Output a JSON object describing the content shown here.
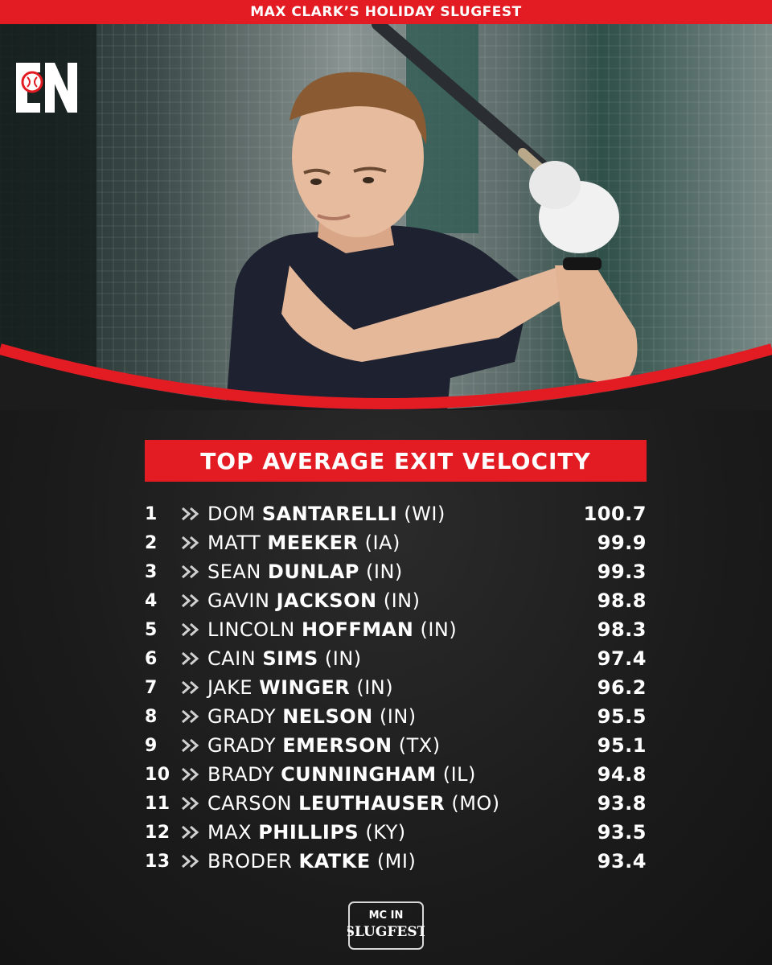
{
  "header": {
    "event_title": "MAX CLARK’S HOLIDAY SLUGFEST"
  },
  "brand": {
    "logo_text": "IN",
    "accent": "#e31b23"
  },
  "section": {
    "title": "TOP AVERAGE EXIT VELOCITY"
  },
  "leaderboard": [
    {
      "rank": "1",
      "first": "DOM",
      "last": "SANTARELLI",
      "state": "(WI)",
      "value": "100.7"
    },
    {
      "rank": "2",
      "first": "MATT",
      "last": "MEEKER",
      "state": "(IA)",
      "value": "99.9"
    },
    {
      "rank": "3",
      "first": "SEAN",
      "last": "DUNLAP",
      "state": "(IN)",
      "value": "99.3"
    },
    {
      "rank": "4",
      "first": "GAVIN",
      "last": "JACKSON",
      "state": "(IN)",
      "value": "98.8"
    },
    {
      "rank": "5",
      "first": "LINCOLN",
      "last": "HOFFMAN",
      "state": "(IN)",
      "value": "98.3"
    },
    {
      "rank": "6",
      "first": "CAIN",
      "last": "SIMS",
      "state": "(IN)",
      "value": "97.4"
    },
    {
      "rank": "7",
      "first": "JAKE",
      "last": "WINGER",
      "state": "(IN)",
      "value": "96.2"
    },
    {
      "rank": "8",
      "first": "GRADY",
      "last": "NELSON",
      "state": "(IN)",
      "value": "95.5"
    },
    {
      "rank": "9",
      "first": "GRADY",
      "last": "EMERSON",
      "state": "(TX)",
      "value": "95.1"
    },
    {
      "rank": "10",
      "first": "BRADY",
      "last": "CUNNINGHAM",
      "state": "(IL)",
      "value": "94.8"
    },
    {
      "rank": "11",
      "first": "CARSON",
      "last": "LEUTHAUSER",
      "state": "(MO)",
      "value": "93.8"
    },
    {
      "rank": "12",
      "first": "MAX",
      "last": "PHILLIPS",
      "state": "(KY)",
      "value": "93.5"
    },
    {
      "rank": "13",
      "first": "BRODER",
      "last": "KATKE",
      "state": "(MI)",
      "value": "93.4"
    }
  ],
  "footer": {
    "logo_line1": "MC IN",
    "logo_line2": "SLUGFEST"
  }
}
